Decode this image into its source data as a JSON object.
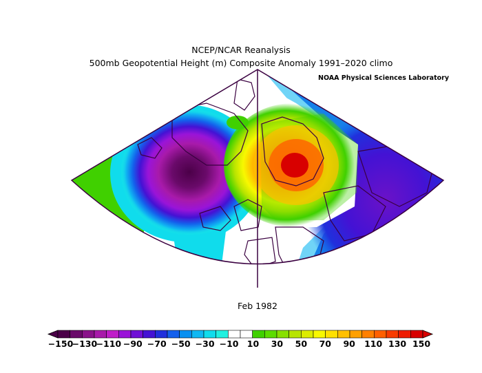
{
  "title": "NCEP/NCAR Reanalysis",
  "subtitle": "500mb Geopotential Height (m) Composite Anomaly 1991–2020 climo",
  "credit": "NOAA Physical Sciences Laboratory",
  "period_label": "Feb 1982",
  "colorbar": {
    "labels": [
      "−150",
      "−130",
      "−110",
      "−90",
      "−70",
      "−50",
      "−30",
      "−10",
      "10",
      "30",
      "50",
      "70",
      "90",
      "110",
      "130",
      "150"
    ],
    "colors": [
      "#4b0048",
      "#6a0a6a",
      "#8a128a",
      "#a81aaa",
      "#bf1ec8",
      "#9a14d8",
      "#7010d6",
      "#4412d4",
      "#2030dc",
      "#1460ec",
      "#0890f0",
      "#10b8f2",
      "#10dcec",
      "#20f0e0",
      "#ffffff",
      "#ffffff",
      "#40d000",
      "#5cdc00",
      "#88e000",
      "#b8e400",
      "#dcec00",
      "#f8f800",
      "#ffe000",
      "#ffc000",
      "#ffa000",
      "#ff8000",
      "#ff6000",
      "#f83c00",
      "#ee1c00",
      "#d80000"
    ]
  },
  "map": {
    "projection": "conic",
    "region": "North Atlantic / Europe",
    "anomaly_centers": [
      {
        "name": "negative-center-greenland",
        "value": -150
      },
      {
        "name": "positive-center-scandinavia",
        "value": 130
      },
      {
        "name": "negative-center-russia",
        "value": -70
      }
    ]
  }
}
